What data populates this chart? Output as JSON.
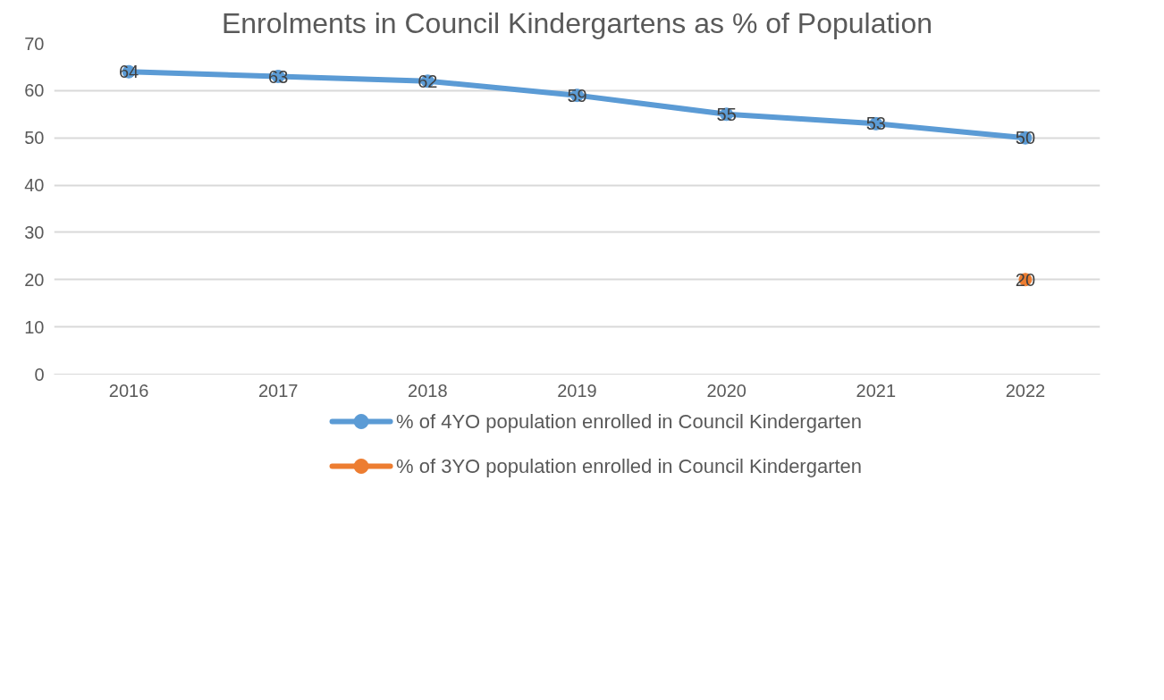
{
  "chart_data": {
    "type": "line",
    "title": "Enrolments in Council Kindergartens as % of Population",
    "categories": [
      "2016",
      "2017",
      "2018",
      "2019",
      "2020",
      "2021",
      "2022"
    ],
    "series": [
      {
        "name": "% of 4YO population enrolled in Council Kindergarten",
        "color": "#5b9bd5",
        "values": [
          64,
          63,
          62,
          59,
          55,
          53,
          50
        ]
      },
      {
        "name": "% of 3YO population enrolled in Council Kindergarten",
        "color": "#ed7d31",
        "values": [
          null,
          null,
          null,
          null,
          null,
          null,
          20
        ]
      }
    ],
    "ylim": [
      0,
      70
    ],
    "yticks": [
      0,
      10,
      20,
      30,
      40,
      50,
      60,
      70
    ],
    "grid": "y",
    "legend": "bottom",
    "marker": "circle",
    "line_style": "solid",
    "data_labels": true
  }
}
